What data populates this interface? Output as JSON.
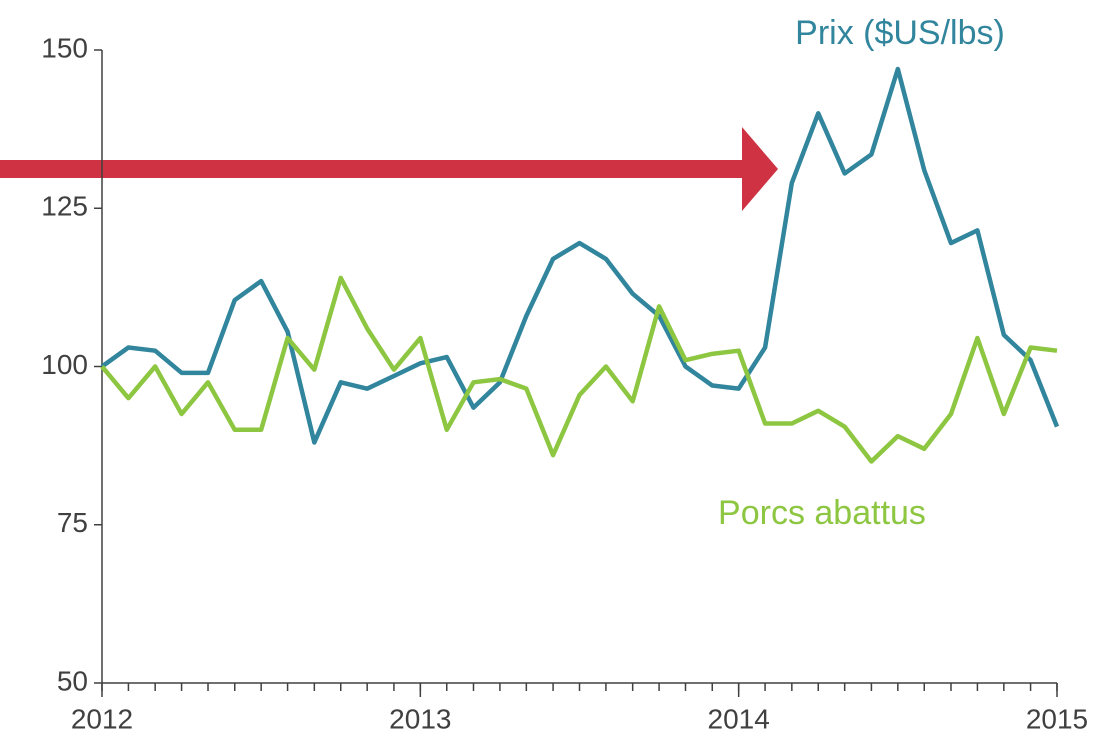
{
  "chart_data": {
    "type": "line",
    "x": [
      2012,
      2012.083,
      2012.167,
      2012.25,
      2012.333,
      2012.417,
      2012.5,
      2012.583,
      2012.667,
      2012.75,
      2012.833,
      2012.917,
      2013,
      2013.083,
      2013.167,
      2013.25,
      2013.333,
      2013.417,
      2013.5,
      2013.583,
      2013.667,
      2013.75,
      2013.833,
      2013.917,
      2014,
      2014.083,
      2014.167,
      2014.25,
      2014.333,
      2014.417,
      2014.5,
      2014.583,
      2014.667,
      2014.75,
      2014.833,
      2014.917,
      2015
    ],
    "series": [
      {
        "name": "Prix ($US/lbs)",
        "color": "#31859c",
        "values": [
          100,
          103,
          102.5,
          99,
          99,
          110.5,
          113.5,
          105.5,
          88,
          97.5,
          96.5,
          98.5,
          100.5,
          101.5,
          93.5,
          97.5,
          108,
          117,
          119.5,
          117,
          111.5,
          108,
          100,
          97,
          96.5,
          103,
          129,
          140,
          130.5,
          133.5,
          147,
          131,
          119.5,
          121.5,
          105,
          101,
          90.5
        ]
      },
      {
        "name": "Porcs abattus",
        "color": "#8dc641",
        "values": [
          100,
          95,
          100,
          92.5,
          97.5,
          90,
          90,
          104.5,
          99.5,
          114,
          106,
          99.5,
          104.5,
          90,
          97.5,
          98,
          96.5,
          86,
          95.5,
          100,
          94.5,
          109.5,
          101,
          102,
          102.5,
          91,
          91,
          93,
          90.5,
          85,
          89,
          87,
          92.5,
          104.5,
          92.5,
          103,
          102.5
        ]
      }
    ],
    "xlim": [
      2012,
      2015
    ],
    "xticks": [
      2012,
      2013,
      2014,
      2015
    ],
    "ylim": [
      50,
      150
    ],
    "yticks": [
      50,
      75,
      100,
      125,
      150
    ]
  }
}
